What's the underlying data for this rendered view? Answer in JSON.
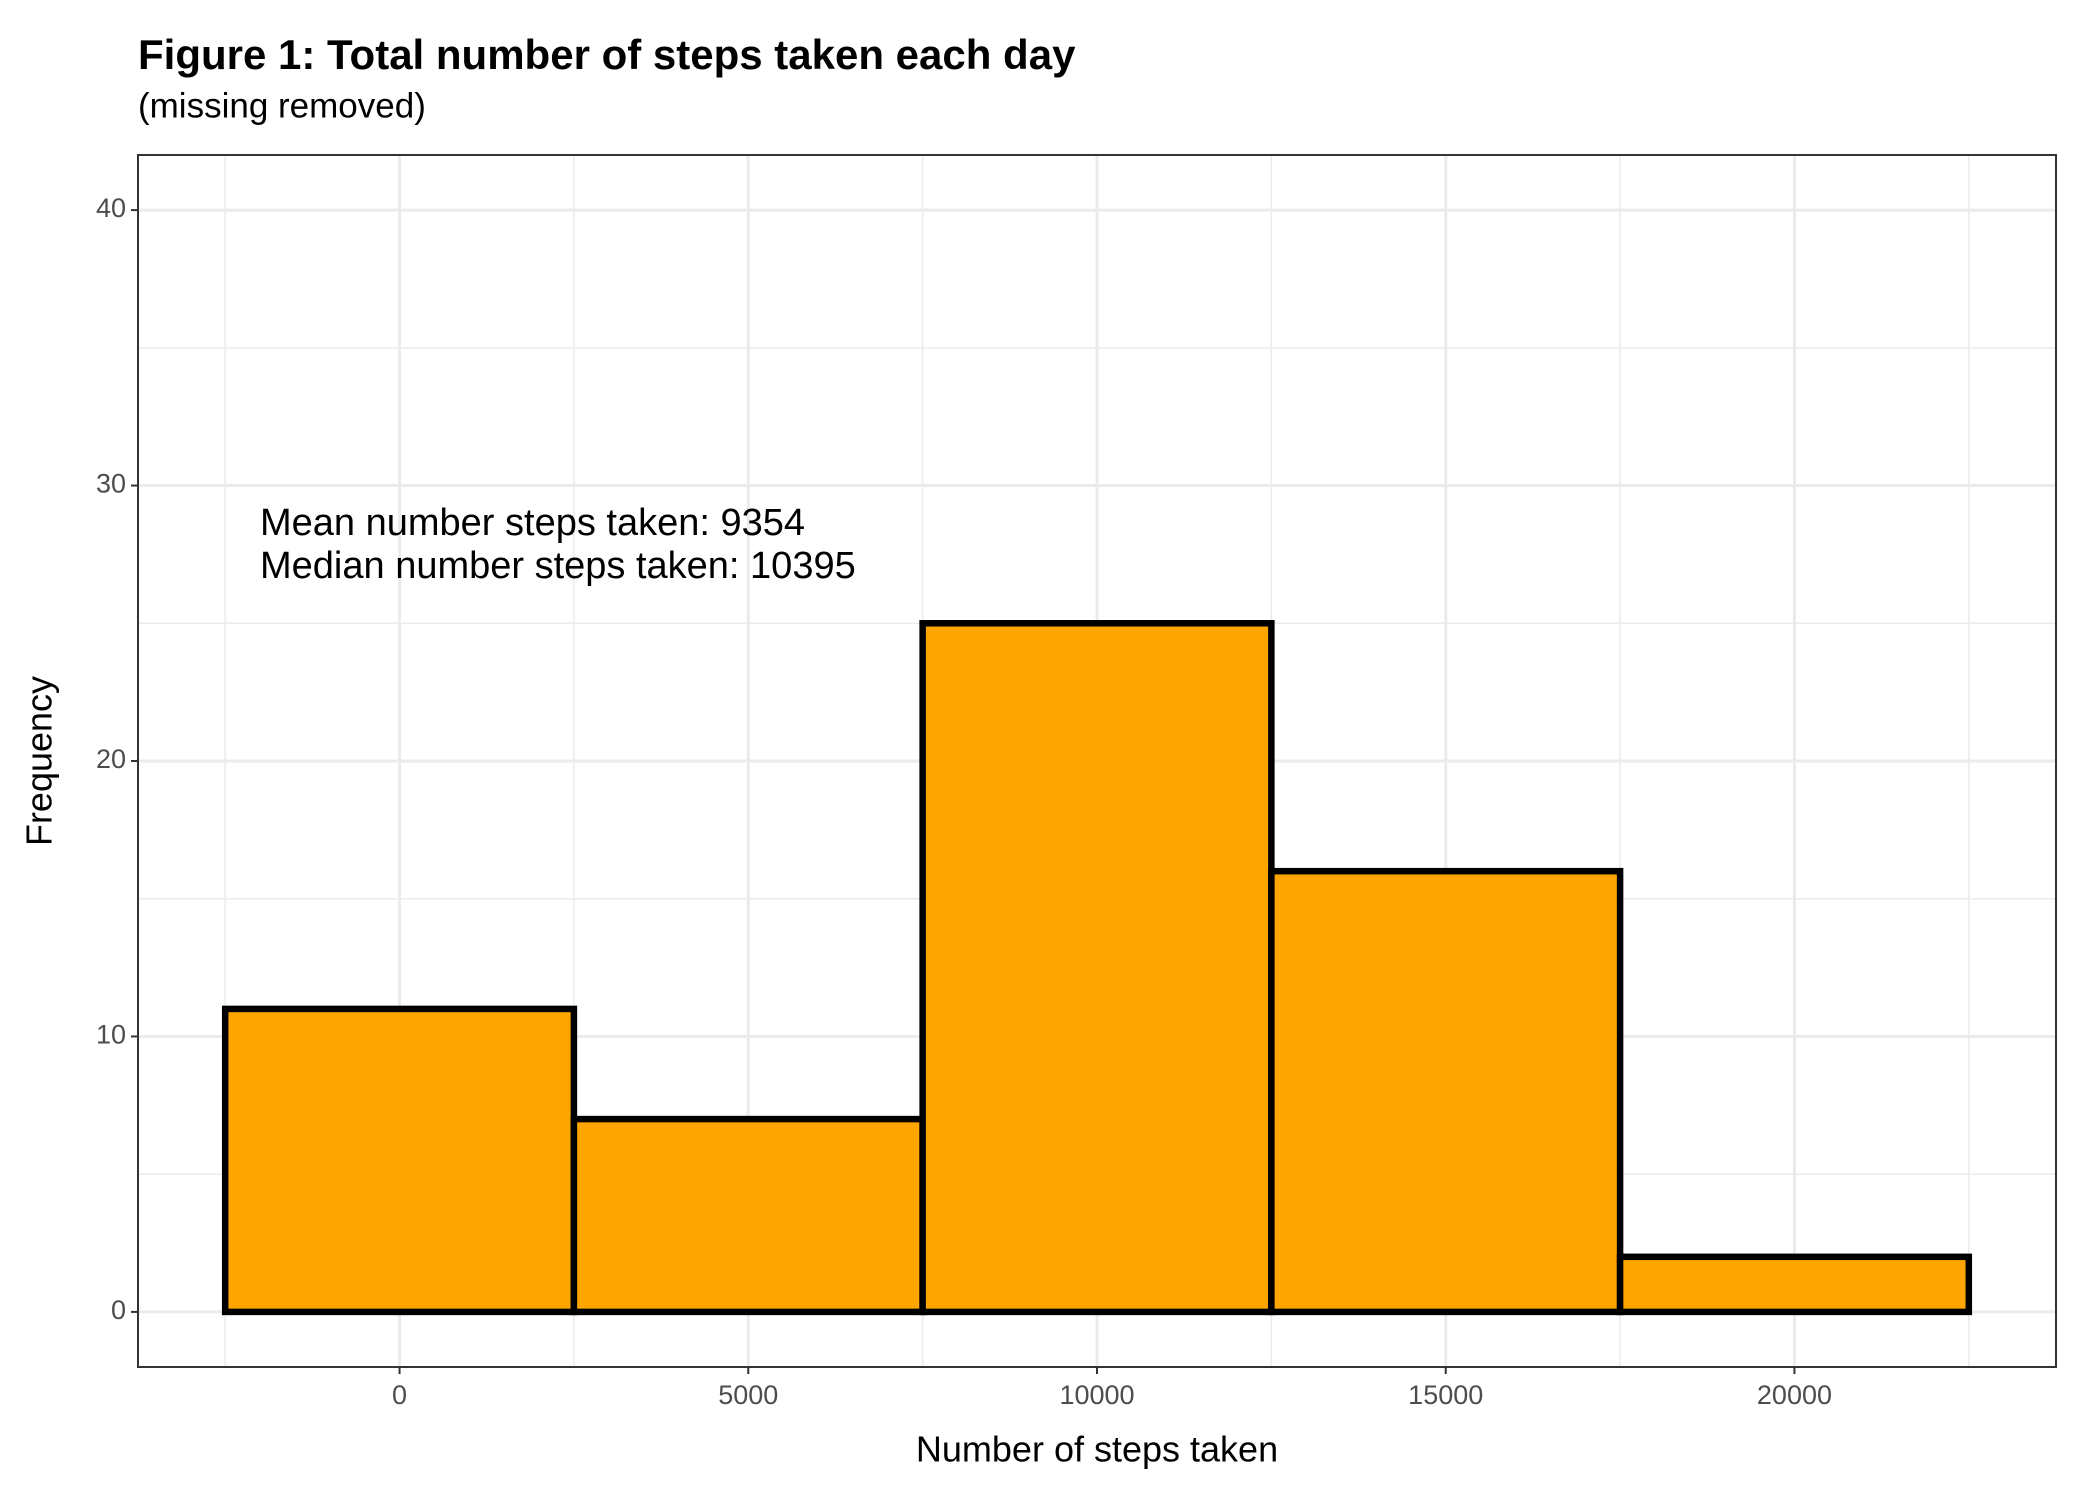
{
  "chart_data": {
    "type": "histogram",
    "title": "Figure 1: Total number of steps taken each day",
    "subtitle": "(missing removed)",
    "x_label": "Number of steps taken",
    "y_label": "Frequency",
    "annotations": [
      "Mean number steps taken: 9354",
      "Median number steps taken: 10395"
    ],
    "bins": [
      -2500,
      2500,
      7500,
      12500,
      17500,
      22500
    ],
    "values": [
      11,
      7,
      25,
      16,
      2
    ],
    "color": "#FFA500",
    "edge_color": "#000000",
    "xlim": [
      -3750,
      23750
    ],
    "ylim": [
      -2,
      42
    ],
    "xticks": [
      0,
      5000,
      10000,
      15000,
      20000
    ],
    "yticks": [
      0,
      10,
      20,
      30,
      40
    ],
    "x_minor_grid": [
      -2500,
      2500,
      7500,
      12500,
      17500,
      22500
    ],
    "y_minor_grid": [
      5,
      15,
      25,
      35
    ],
    "grid": true
  }
}
